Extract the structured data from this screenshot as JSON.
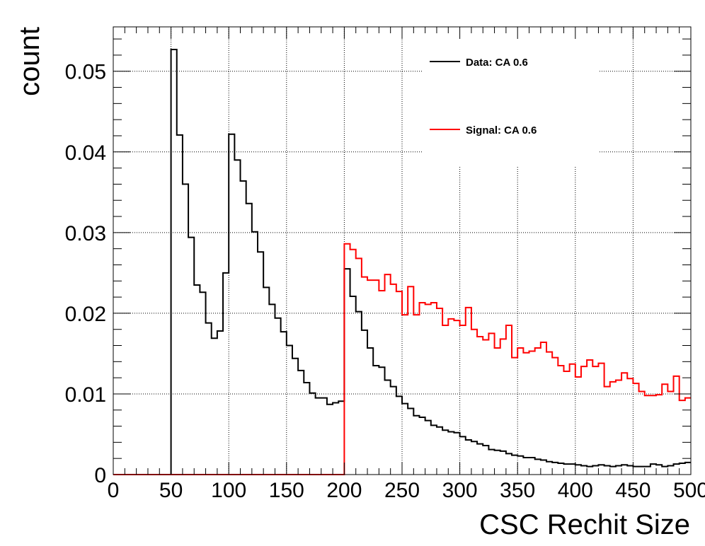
{
  "chart_data": {
    "type": "line",
    "title": "",
    "xlabel": "CSC Rechit Size",
    "ylabel": "count",
    "xlim": [
      0,
      500
    ],
    "ylim": [
      0,
      0.0555
    ],
    "grid": true,
    "legend_position": "top-right",
    "bin_width": 5,
    "x_ticks": [
      0,
      50,
      100,
      150,
      200,
      250,
      300,
      350,
      400,
      450,
      500
    ],
    "x_tick_labels": [
      "0",
      "50",
      "100",
      "150",
      "200",
      "250",
      "300",
      "350",
      "400",
      "450",
      "500"
    ],
    "y_ticks": [
      0,
      0.01,
      0.02,
      0.03,
      0.04,
      0.05
    ],
    "y_tick_labels": [
      "0",
      "0.01",
      "0.02",
      "0.03",
      "0.04",
      "0.05"
    ],
    "series": [
      {
        "name": "Data: CA 0.6",
        "color": "#000000",
        "x": [
          50,
          55,
          60,
          65,
          70,
          75,
          80,
          85,
          90,
          95,
          100,
          105,
          110,
          115,
          120,
          125,
          130,
          135,
          140,
          145,
          150,
          155,
          160,
          165,
          170,
          175,
          180,
          185,
          190,
          195,
          200,
          205,
          210,
          215,
          220,
          225,
          230,
          235,
          240,
          245,
          250,
          255,
          260,
          265,
          270,
          275,
          280,
          285,
          290,
          295,
          300,
          305,
          310,
          315,
          320,
          325,
          330,
          335,
          340,
          345,
          350,
          355,
          360,
          365,
          370,
          375,
          380,
          385,
          390,
          395,
          400,
          405,
          410,
          415,
          420,
          425,
          430,
          435,
          440,
          445,
          450,
          455,
          460,
          465,
          470,
          475,
          480,
          485,
          490,
          495
        ],
        "values": [
          0.0527,
          0.0421,
          0.036,
          0.0294,
          0.0235,
          0.0226,
          0.0188,
          0.0169,
          0.0178,
          0.025,
          0.0422,
          0.039,
          0.0364,
          0.0336,
          0.0301,
          0.0276,
          0.0232,
          0.0211,
          0.0194,
          0.0177,
          0.016,
          0.0144,
          0.0129,
          0.0114,
          0.0101,
          0.0095,
          0.0095,
          0.0087,
          0.0089,
          0.0091,
          0.0255,
          0.0221,
          0.0202,
          0.0179,
          0.0157,
          0.0135,
          0.0133,
          0.0117,
          0.0109,
          0.0097,
          0.0088,
          0.0082,
          0.0073,
          0.0071,
          0.0067,
          0.0061,
          0.0059,
          0.0055,
          0.0053,
          0.0052,
          0.0047,
          0.0043,
          0.0041,
          0.0038,
          0.0036,
          0.0031,
          0.003,
          0.0029,
          0.0026,
          0.0024,
          0.0023,
          0.0021,
          0.0021,
          0.0019,
          0.0018,
          0.0016,
          0.0015,
          0.0014,
          0.0013,
          0.0013,
          0.0012,
          0.0011,
          0.001,
          0.0011,
          0.0012,
          0.0011,
          0.001,
          0.0011,
          0.0012,
          0.0011,
          0.001,
          0.001,
          0.001,
          0.0013,
          0.0012,
          0.001,
          0.0011,
          0.0013,
          0.0014,
          0.0015
        ]
      },
      {
        "name": "Signal: CA 0.6",
        "color": "#ff0000",
        "x": [
          200,
          205,
          210,
          215,
          220,
          225,
          230,
          235,
          240,
          245,
          250,
          255,
          260,
          265,
          270,
          275,
          280,
          285,
          290,
          295,
          300,
          305,
          310,
          315,
          320,
          325,
          330,
          335,
          340,
          345,
          350,
          355,
          360,
          365,
          370,
          375,
          380,
          385,
          390,
          395,
          400,
          405,
          410,
          415,
          420,
          425,
          430,
          435,
          440,
          445,
          450,
          455,
          460,
          465,
          470,
          475,
          480,
          485,
          490,
          495
        ],
        "values": [
          0.0286,
          0.0279,
          0.0268,
          0.0245,
          0.0241,
          0.0241,
          0.0228,
          0.0248,
          0.0236,
          0.0227,
          0.0198,
          0.0233,
          0.0198,
          0.0213,
          0.0211,
          0.0213,
          0.0206,
          0.0185,
          0.0193,
          0.0191,
          0.0185,
          0.0207,
          0.018,
          0.0171,
          0.0167,
          0.0175,
          0.0157,
          0.0168,
          0.0185,
          0.0145,
          0.0157,
          0.0151,
          0.0153,
          0.0157,
          0.0164,
          0.0152,
          0.0145,
          0.0135,
          0.0128,
          0.0137,
          0.0121,
          0.0134,
          0.0142,
          0.0134,
          0.0138,
          0.0109,
          0.0115,
          0.0117,
          0.0126,
          0.0119,
          0.0113,
          0.0103,
          0.0098,
          0.0098,
          0.0099,
          0.0112,
          0.0103,
          0.0122,
          0.0092,
          0.0095
        ]
      }
    ]
  }
}
